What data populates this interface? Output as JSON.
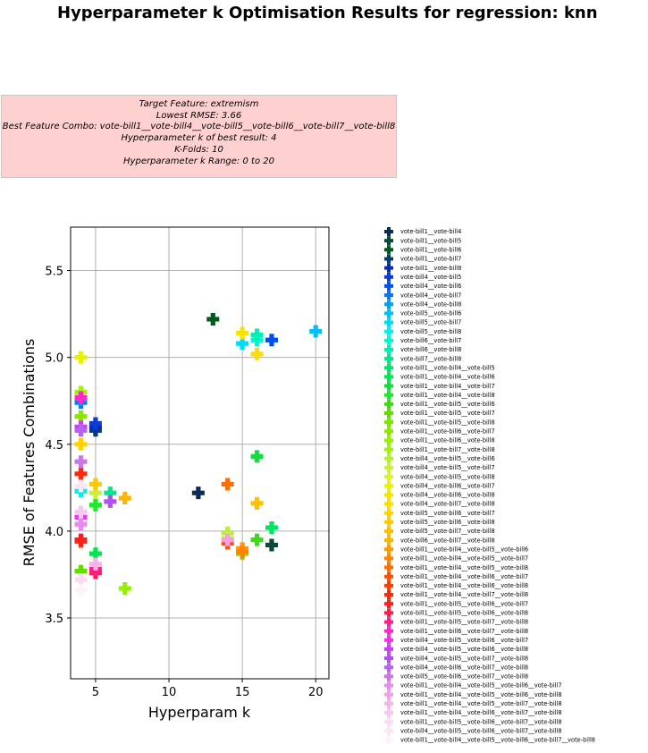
{
  "title": "Hyperparameter k Optimisation Results for regression: knn",
  "info": {
    "target": "Target Feature: extremism",
    "rmse": "Lowest RMSE: 3.66",
    "combo": "Best Feature Combo: vote-bill1__vote-bill4__vote-bill5__vote-bill6__vote-bill7__vote-bill8",
    "bestk": "Hyperparameter k of best result: 4",
    "kfolds": "K-Folds: 10",
    "range": "Hyperparameter k Range: 0 to 20"
  },
  "chart_data": {
    "type": "scatter",
    "xlabel": "Hyperparam k",
    "ylabel": "RMSE of Features Combinations",
    "xlim": [
      3.3,
      20.9
    ],
    "ylim": [
      3.15,
      5.75
    ],
    "xticks": [
      "5",
      "10",
      "15",
      "20"
    ],
    "yticks": [
      "3.5",
      "4.0",
      "4.5",
      "5.0",
      "5.5"
    ],
    "grid": true,
    "legend_position": "outside-right",
    "marker": "plus",
    "series": [
      {
        "name": "vote-bill1__vote-bill4",
        "color": "#0a2a5a",
        "x": 12,
        "y": 4.22
      },
      {
        "name": "vote-bill1__vote-bill5",
        "color": "#064a3a",
        "x": 17,
        "y": 3.92
      },
      {
        "name": "vote-bill1__vote-bill6",
        "color": "#005a1e",
        "x": 13,
        "y": 5.22
      },
      {
        "name": "vote-bill1__vote-bill7",
        "color": "#003f6e",
        "x": 5,
        "y": 4.58
      },
      {
        "name": "vote-bill1__vote-bill8",
        "color": "#0a2ab4",
        "x": 5,
        "y": 4.6
      },
      {
        "name": "vote-bill4__vote-bill5",
        "color": "#0a3cdc",
        "x": 5,
        "y": 4.62
      },
      {
        "name": "vote-bill4__vote-bill6",
        "color": "#0050f0",
        "x": 17,
        "y": 5.1
      },
      {
        "name": "vote-bill4__vote-bill7",
        "color": "#0a78f0",
        "x": 4,
        "y": 4.74
      },
      {
        "name": "vote-bill4__vote-bill8",
        "color": "#009ef5",
        "x": 4,
        "y": 4.76
      },
      {
        "name": "vote-bill5__vote-bill6",
        "color": "#00c0f5",
        "x": 20,
        "y": 5.15
      },
      {
        "name": "vote-bill5__vote-bill7",
        "color": "#00dcf5",
        "x": 15,
        "y": 5.08
      },
      {
        "name": "vote-bill5__vote-bill8",
        "color": "#00f0f0",
        "x": 4,
        "y": 4.23
      },
      {
        "name": "vote-bill6__vote-bill7",
        "color": "#00f5d2",
        "x": 16,
        "y": 5.1
      },
      {
        "name": "vote-bill6__vote-bill8",
        "color": "#00f0b4",
        "x": 16,
        "y": 5.13
      },
      {
        "name": "vote-bill7__vote-bill8",
        "color": "#00e68c",
        "x": 6,
        "y": 4.22
      },
      {
        "name": "vote-bill1__vote-bill4__vote-bill5",
        "color": "#00e664",
        "x": 17,
        "y": 4.02
      },
      {
        "name": "vote-bill1__vote-bill4__vote-bill6",
        "color": "#00e650",
        "x": 5,
        "y": 3.87
      },
      {
        "name": "vote-bill1__vote-bill4__vote-bill7",
        "color": "#14dc3c",
        "x": 16,
        "y": 4.43
      },
      {
        "name": "vote-bill1__vote-bill4__vote-bill8",
        "color": "#1ee628",
        "x": 5,
        "y": 4.15
      },
      {
        "name": "vote-bill1__vote-bill5__vote-bill6",
        "color": "#3cdc14",
        "x": 16,
        "y": 3.95
      },
      {
        "name": "vote-bill1__vote-bill5__vote-bill7",
        "color": "#64dc00",
        "x": 4,
        "y": 3.77
      },
      {
        "name": "vote-bill1__vote-bill5__vote-bill8",
        "color": "#78e600",
        "x": 15,
        "y": 3.87
      },
      {
        "name": "vote-bill1__vote-bill6__vote-bill7",
        "color": "#8ce600",
        "x": 4,
        "y": 4.66
      },
      {
        "name": "vote-bill1__vote-bill6__vote-bill8",
        "color": "#96f000",
        "x": 7,
        "y": 3.67
      },
      {
        "name": "vote-bill1__vote-bill7__vote-bill8",
        "color": "#a0f014",
        "x": 4,
        "y": 4.8
      },
      {
        "name": "vote-bill4__vote-bill5__vote-bill6",
        "color": "#b4f032",
        "x": 14,
        "y": 3.99
      },
      {
        "name": "vote-bill4__vote-bill5__vote-bill7",
        "color": "#c8f03c",
        "x": 5,
        "y": 4.22
      },
      {
        "name": "vote-bill4__vote-bill5__vote-bill8",
        "color": "#dcf03c",
        "x": 14,
        "y": 3.96
      },
      {
        "name": "vote-bill4__vote-bill6__vote-bill7",
        "color": "#eaf000",
        "x": 4,
        "y": 5.0
      },
      {
        "name": "vote-bill4__vote-bill6__vote-bill8",
        "color": "#f5e600",
        "x": 15,
        "y": 5.14
      },
      {
        "name": "vote-bill4__vote-bill7__vote-bill8",
        "color": "#ffdc00",
        "x": 16,
        "y": 5.02
      },
      {
        "name": "vote-bill5__vote-bill6__vote-bill7",
        "color": "#ffd200",
        "x": 4,
        "y": 4.5
      },
      {
        "name": "vote-bill5__vote-bill6__vote-bill8",
        "color": "#ffc800",
        "x": 5,
        "y": 4.27
      },
      {
        "name": "vote-bill5__vote-bill7__vote-bill8",
        "color": "#ffbe00",
        "x": 16,
        "y": 4.16
      },
      {
        "name": "vote-bill6__vote-bill7__vote-bill8",
        "color": "#ffb400",
        "x": 7,
        "y": 4.19
      },
      {
        "name": "vote-bill1__vote-bill4__vote-bill5__vote-bill6",
        "color": "#ff9b00",
        "x": 15,
        "y": 3.9
      },
      {
        "name": "vote-bill1__vote-bill4__vote-bill5__vote-bill7",
        "color": "#ff8200",
        "x": 15,
        "y": 3.88
      },
      {
        "name": "vote-bill1__vote-bill4__vote-bill5__vote-bill8",
        "color": "#ff6e00",
        "x": 14,
        "y": 4.27
      },
      {
        "name": "vote-bill1__vote-bill4__vote-bill6__vote-bill7",
        "color": "#ff5000",
        "x": 14,
        "y": 3.93
      },
      {
        "name": "vote-bill1__vote-bill4__vote-bill6__vote-bill8",
        "color": "#ff3c00",
        "x": 4,
        "y": 3.94
      },
      {
        "name": "vote-bill1__vote-bill4__vote-bill7__vote-bill8",
        "color": "#ff280a",
        "x": 4,
        "y": 4.33
      },
      {
        "name": "vote-bill1__vote-bill5__vote-bill6__vote-bill7",
        "color": "#ff1e1e",
        "x": 4,
        "y": 3.95
      },
      {
        "name": "vote-bill1__vote-bill5__vote-bill6__vote-bill8",
        "color": "#ff1e50",
        "x": 5,
        "y": 3.76
      },
      {
        "name": "vote-bill1__vote-bill5__vote-bill7__vote-bill8",
        "color": "#ff1e8c",
        "x": 5,
        "y": 3.78
      },
      {
        "name": "vote-bill1__vote-bill6__vote-bill7__vote-bill8",
        "color": "#ff28c8",
        "x": 4,
        "y": 4.77
      },
      {
        "name": "vote-bill4__vote-bill5__vote-bill6__vote-bill7",
        "color": "#f032f0",
        "x": 4,
        "y": 4.08
      },
      {
        "name": "vote-bill4__vote-bill5__vote-bill6__vote-bill8",
        "color": "#d23cf5",
        "x": 4,
        "y": 4.6
      },
      {
        "name": "vote-bill4__vote-bill5__vote-bill7__vote-bill8",
        "color": "#b450f0",
        "x": 6,
        "y": 4.17
      },
      {
        "name": "vote-bill4__vote-bill6__vote-bill7__vote-bill8",
        "color": "#b464f0",
        "x": 4,
        "y": 4.58
      },
      {
        "name": "vote-bill5__vote-bill6__vote-bill7__vote-bill8",
        "color": "#c878e6",
        "x": 4,
        "y": 4.4
      },
      {
        "name": "vote-bill1__vote-bill4__vote-bill5__vote-bill6__vote-bill7",
        "color": "#e68cf0",
        "x": 4,
        "y": 4.04
      },
      {
        "name": "vote-bill1__vote-bill4__vote-bill5__vote-bill6__vote-bill8",
        "color": "#f0a0e6",
        "x": 14,
        "y": 3.95
      },
      {
        "name": "vote-bill1__vote-bill4__vote-bill5__vote-bill7__vote-bill8",
        "color": "#f5b4e6",
        "x": 5,
        "y": 3.81
      },
      {
        "name": "vote-bill1__vote-bill4__vote-bill6__vote-bill7__vote-bill8",
        "color": "#f5c8f0",
        "x": 4,
        "y": 4.11
      },
      {
        "name": "vote-bill1__vote-bill5__vote-bill6__vote-bill7__vote-bill8",
        "color": "#f8dcf5",
        "x": 4,
        "y": 3.72
      },
      {
        "name": "vote-bill4__vote-bill5__vote-bill6__vote-bill7__vote-bill8",
        "color": "#fbe6f8",
        "x": 4,
        "y": 4.26
      },
      {
        "name": "vote-bill1__vote-bill4__vote-bill5__vote-bill6__vote-bill7__vote-bill8",
        "color": "#fdf2fc",
        "x": 4,
        "y": 3.66
      }
    ]
  }
}
